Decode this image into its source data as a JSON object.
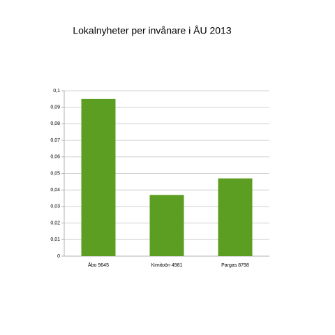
{
  "chart_data": {
    "type": "bar",
    "title": "Lokalnyheter per invånare i ÅU 2013",
    "categories": [
      "Åbo 9645",
      "Kimitoön 4981",
      "Pargas 8798"
    ],
    "values": [
      0.095,
      0.037,
      0.047
    ],
    "color": "#5c9e21",
    "ylim": [
      0,
      0.1
    ],
    "yticks": [
      0,
      {
        "value": 0.01,
        "label": "0,01"
      },
      {
        "value": 0.02,
        "label": "0,02"
      },
      {
        "value": 0.03,
        "label": "0,03"
      },
      {
        "value": 0.04,
        "label": "0,04"
      },
      {
        "value": 0.05,
        "label": "0,05"
      },
      {
        "value": 0.06,
        "label": "0,06"
      },
      {
        "value": 0.07,
        "label": "0,07"
      },
      {
        "value": 0.08,
        "label": "0,08"
      },
      {
        "value": 0.09,
        "label": "0,09"
      },
      {
        "value": 0.1,
        "label": "0,1"
      }
    ],
    "grid": true
  }
}
